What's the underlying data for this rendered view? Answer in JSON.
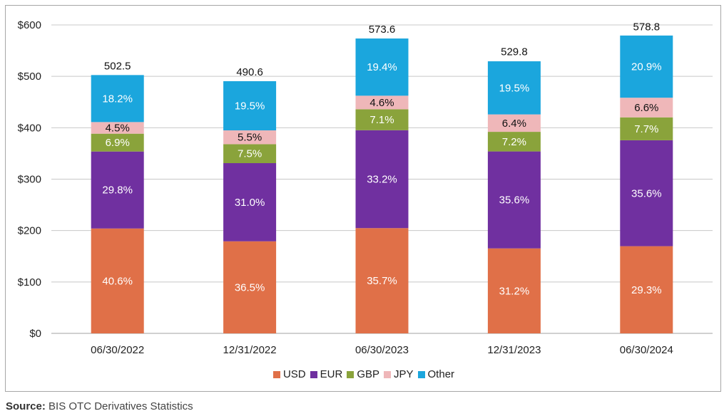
{
  "chart_data": {
    "type": "bar",
    "stacked": true,
    "categories": [
      "06/30/2022",
      "12/31/2022",
      "06/30/2023",
      "12/31/2023",
      "06/30/2024"
    ],
    "totals": [
      "502.5",
      "490.6",
      "573.6",
      "529.8",
      "578.8"
    ],
    "total_values": [
      502.5,
      490.6,
      573.6,
      529.8,
      578.8
    ],
    "series": [
      {
        "name": "USD",
        "color": "#e07048",
        "label_color": "#ffffff",
        "shares": [
          40.6,
          36.5,
          35.7,
          31.2,
          29.3
        ],
        "labels": [
          "40.6%",
          "36.5%",
          "35.7%",
          "31.2%",
          "29.3%"
        ]
      },
      {
        "name": "EUR",
        "color": "#7030a0",
        "label_color": "#ffffff",
        "shares": [
          29.8,
          31.0,
          33.2,
          35.6,
          35.6
        ],
        "labels": [
          "29.8%",
          "31.0%",
          "33.2%",
          "35.6%",
          "35.6%"
        ]
      },
      {
        "name": "GBP",
        "color": "#8aa33b",
        "label_color": "#ffffff",
        "shares": [
          6.9,
          7.5,
          7.1,
          7.2,
          7.7
        ],
        "labels": [
          "6.9%",
          "7.5%",
          "7.1%",
          "7.2%",
          "7.7%"
        ]
      },
      {
        "name": "JPY",
        "color": "#efb7b9",
        "label_color": "#111111",
        "shares": [
          4.5,
          5.5,
          4.6,
          6.4,
          6.6
        ],
        "labels": [
          "4.5%",
          "5.5%",
          "4.6%",
          "6.4%",
          "6.6%"
        ]
      },
      {
        "name": "Other",
        "color": "#1ba6dd",
        "label_color": "#ffffff",
        "shares": [
          18.2,
          19.5,
          19.4,
          19.5,
          20.9
        ],
        "labels": [
          "18.2%",
          "19.5%",
          "19.4%",
          "19.5%",
          "20.9%"
        ]
      }
    ],
    "y_ticks": [
      "$0",
      "$100",
      "$200",
      "$300",
      "$400",
      "$500",
      "$600"
    ],
    "y_tick_values": [
      0,
      100,
      200,
      300,
      400,
      500,
      600
    ],
    "ylim": [
      0,
      600
    ],
    "grid": true,
    "legend_position": "bottom"
  },
  "source": {
    "label": "Source:",
    "text": "BIS OTC Derivatives Statistics"
  }
}
